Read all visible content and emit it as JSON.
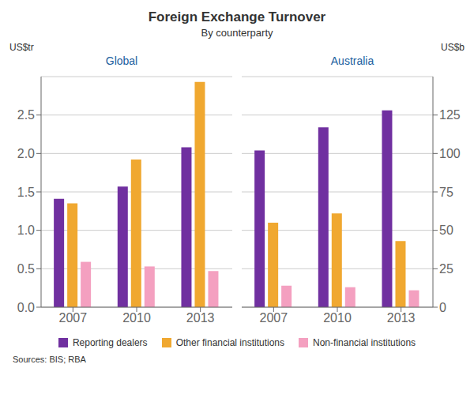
{
  "title": "Foreign Exchange Turnover",
  "subtitle": "By counterparty",
  "annotations": [
    "Sources: BIS; RBA"
  ],
  "chart_data": [
    {
      "type": "bar",
      "title": "Global",
      "y_label": "US$tr",
      "categories": [
        "2007",
        "2010",
        "2013"
      ],
      "series": [
        {
          "name": "Reporting dealers",
          "color": "#7030A0",
          "values": [
            1.41,
            1.57,
            2.08
          ]
        },
        {
          "name": "Other financial institutions",
          "color": "#F0A830",
          "values": [
            1.35,
            1.92,
            2.93
          ]
        },
        {
          "name": "Non-financial institutions",
          "color": "#F4A0C0",
          "values": [
            0.59,
            0.53,
            0.47
          ]
        }
      ],
      "ylim": [
        0,
        3.0
      ],
      "yticks": [
        {
          "value": 0,
          "label": "0.0"
        },
        0.5,
        {
          "value": 1,
          "label": "1.0"
        },
        1.5,
        {
          "value": 2,
          "label": "2.0"
        },
        2.5
      ],
      "grid": true
    },
    {
      "type": "bar",
      "title": "Australia",
      "y_label": "US$b",
      "categories": [
        "2007",
        "2010",
        "2013"
      ],
      "series": [
        {
          "name": "Reporting dealers",
          "color": "#7030A0",
          "values": [
            102,
            117,
            128
          ]
        },
        {
          "name": "Other financial institutions",
          "color": "#F0A830",
          "values": [
            55,
            61,
            43
          ]
        },
        {
          "name": "Non-financial institutions",
          "color": "#F4A0C0",
          "values": [
            14,
            13,
            11
          ]
        }
      ],
      "ylim": [
        0,
        150
      ],
      "yticks": [
        0,
        25,
        50,
        75,
        100,
        125
      ],
      "grid": true
    }
  ]
}
